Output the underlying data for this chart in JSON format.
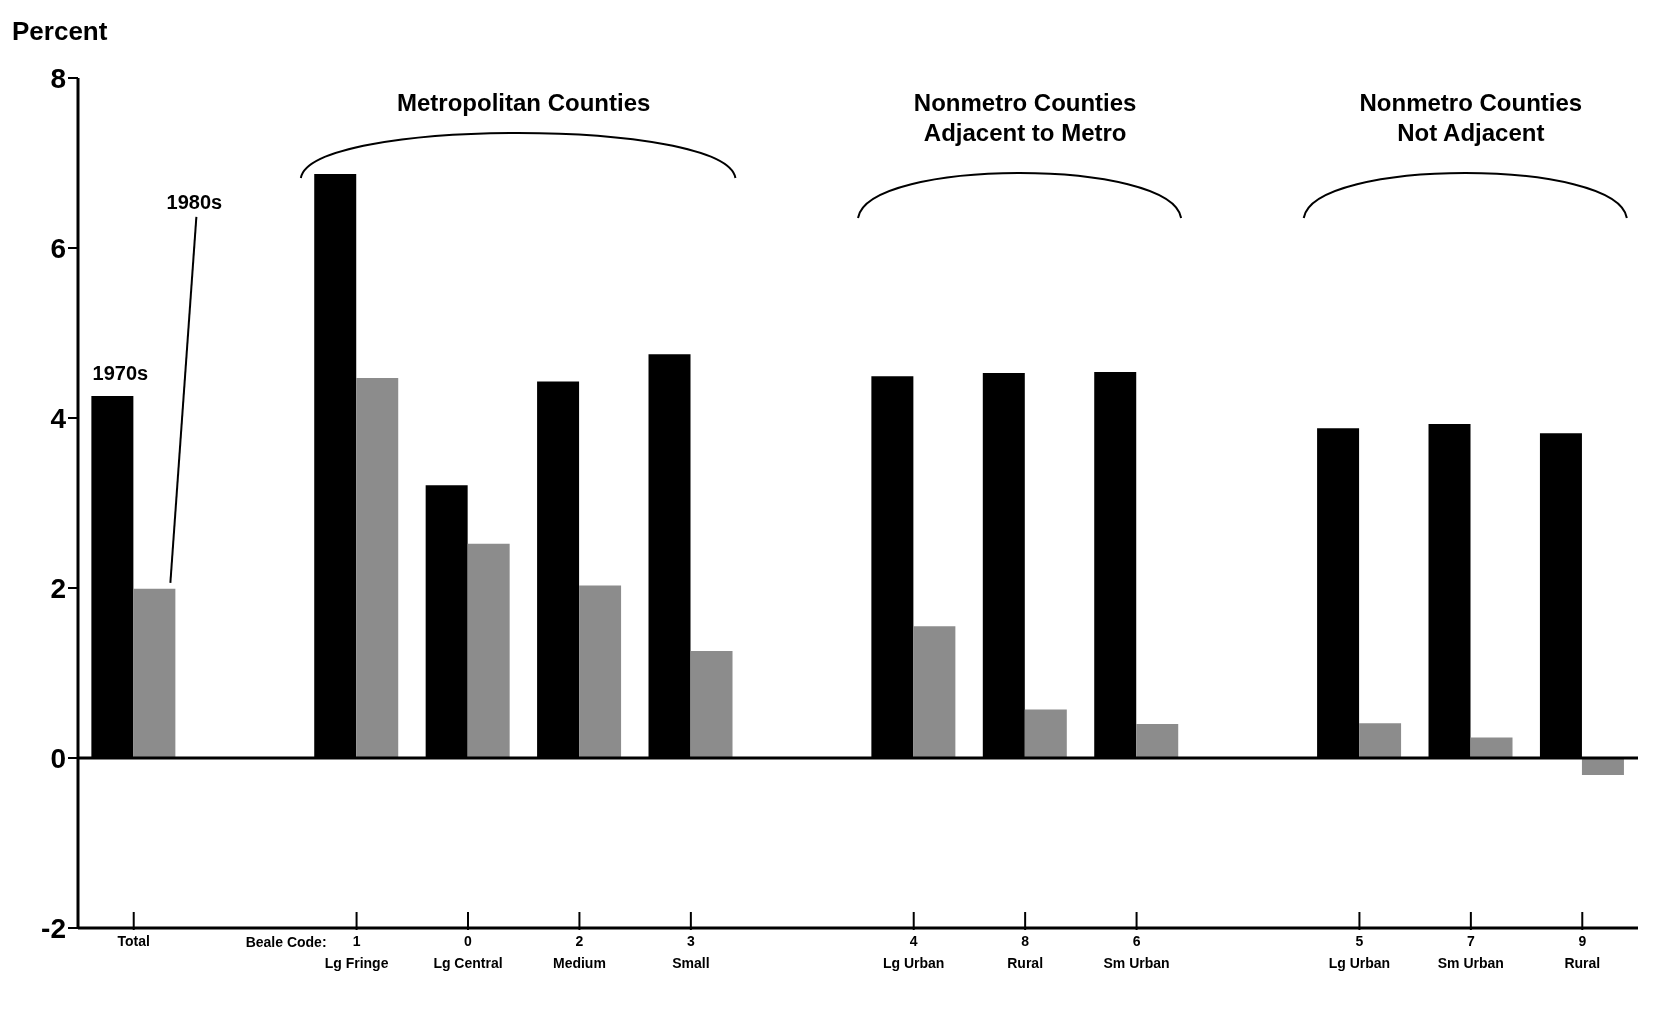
{
  "chart_data": {
    "type": "bar",
    "ylabel": "Percent",
    "categories": [
      "Total",
      null,
      "1\nLg Fringe",
      "0\nLg Central",
      "2\nMedium",
      "3\nSmall",
      null,
      "4\nLg Urban",
      "8\nRural",
      "6\nSm Urban",
      null,
      "5\nLg Urban",
      "7\nSm Urban",
      "9\nRural"
    ],
    "series": [
      {
        "name": "1970s",
        "color": "#000000",
        "values": [
          4.26,
          null,
          6.87,
          3.21,
          4.43,
          4.75,
          null,
          4.49,
          4.53,
          4.54,
          null,
          3.88,
          3.93,
          3.82
        ]
      },
      {
        "name": "1980s",
        "color": "#8c8c8c",
        "values": [
          1.99,
          null,
          4.47,
          2.52,
          2.03,
          1.26,
          null,
          1.55,
          0.57,
          0.4,
          null,
          0.41,
          0.24,
          -0.2
        ]
      }
    ],
    "ylim": [
      -2,
      8
    ],
    "yticks": [
      -2,
      0,
      2,
      4,
      6,
      8
    ],
    "grid": false,
    "legend": false,
    "ref_lines": [
      {
        "axis": "y",
        "value": 0
      }
    ],
    "annotations": [
      "Beale Code:",
      "Metropolitan Counties",
      "Nonmetro Counties Adjacent to Metro",
      "Nonmetro Counties Not Adjacent"
    ]
  }
}
